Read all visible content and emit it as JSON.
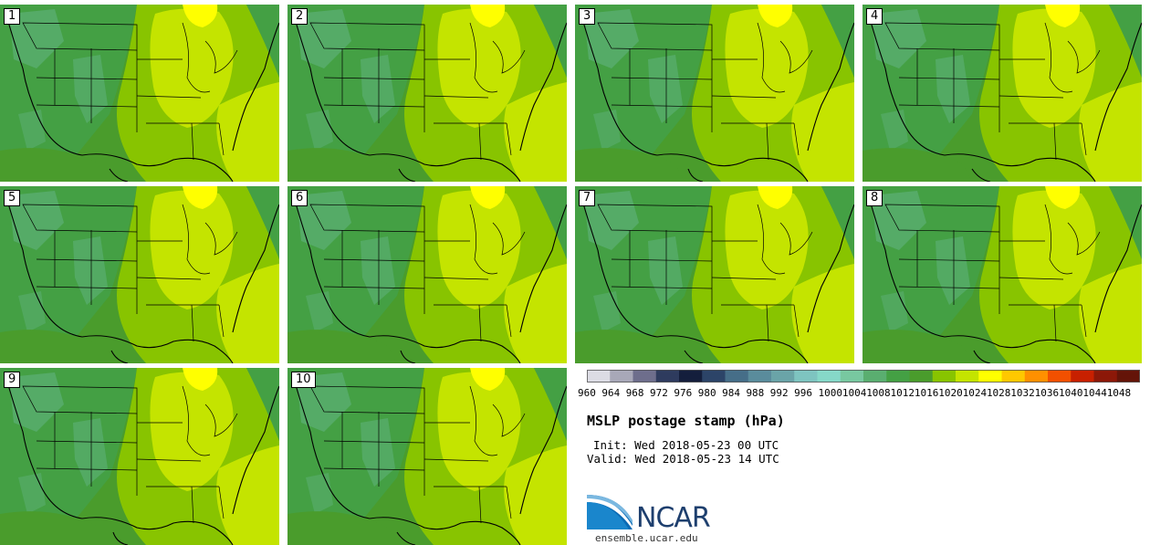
{
  "members": [
    {
      "label": "1"
    },
    {
      "label": "2"
    },
    {
      "label": "3"
    },
    {
      "label": "4"
    },
    {
      "label": "5"
    },
    {
      "label": "6"
    },
    {
      "label": "7"
    },
    {
      "label": "8"
    },
    {
      "label": "9"
    },
    {
      "label": "10"
    }
  ],
  "legend": {
    "levels": [
      "960",
      "964",
      "968",
      "972",
      "976",
      "980",
      "984",
      "988",
      "992",
      "996",
      "1000",
      "1004",
      "1008",
      "1012",
      "1016",
      "1020",
      "1024",
      "1028",
      "1032",
      "1036",
      "1040",
      "1044",
      "1048"
    ],
    "colors": [
      "#dcdce4",
      "#a8a8b8",
      "#6e6e8c",
      "#2e3b5e",
      "#141e3c",
      "#2c4468",
      "#466e88",
      "#5a8c9c",
      "#6aa4a8",
      "#7ec4c0",
      "#86d8c8",
      "#78c8a0",
      "#5aae70",
      "#44a044",
      "#4a9c2c",
      "#88c400",
      "#c4e400",
      "#ffff00",
      "#ffc800",
      "#ff9000",
      "#f25000",
      "#c82000",
      "#8c1808",
      "#641408"
    ]
  },
  "title": "MSLP postage stamp (hPa)",
  "init": "Init: Wed 2018-05-23 00 UTC",
  "valid": "Valid: Wed 2018-05-23 14 UTC",
  "logo": {
    "text": "NCAR",
    "url": "ensemble.ucar.edu"
  }
}
